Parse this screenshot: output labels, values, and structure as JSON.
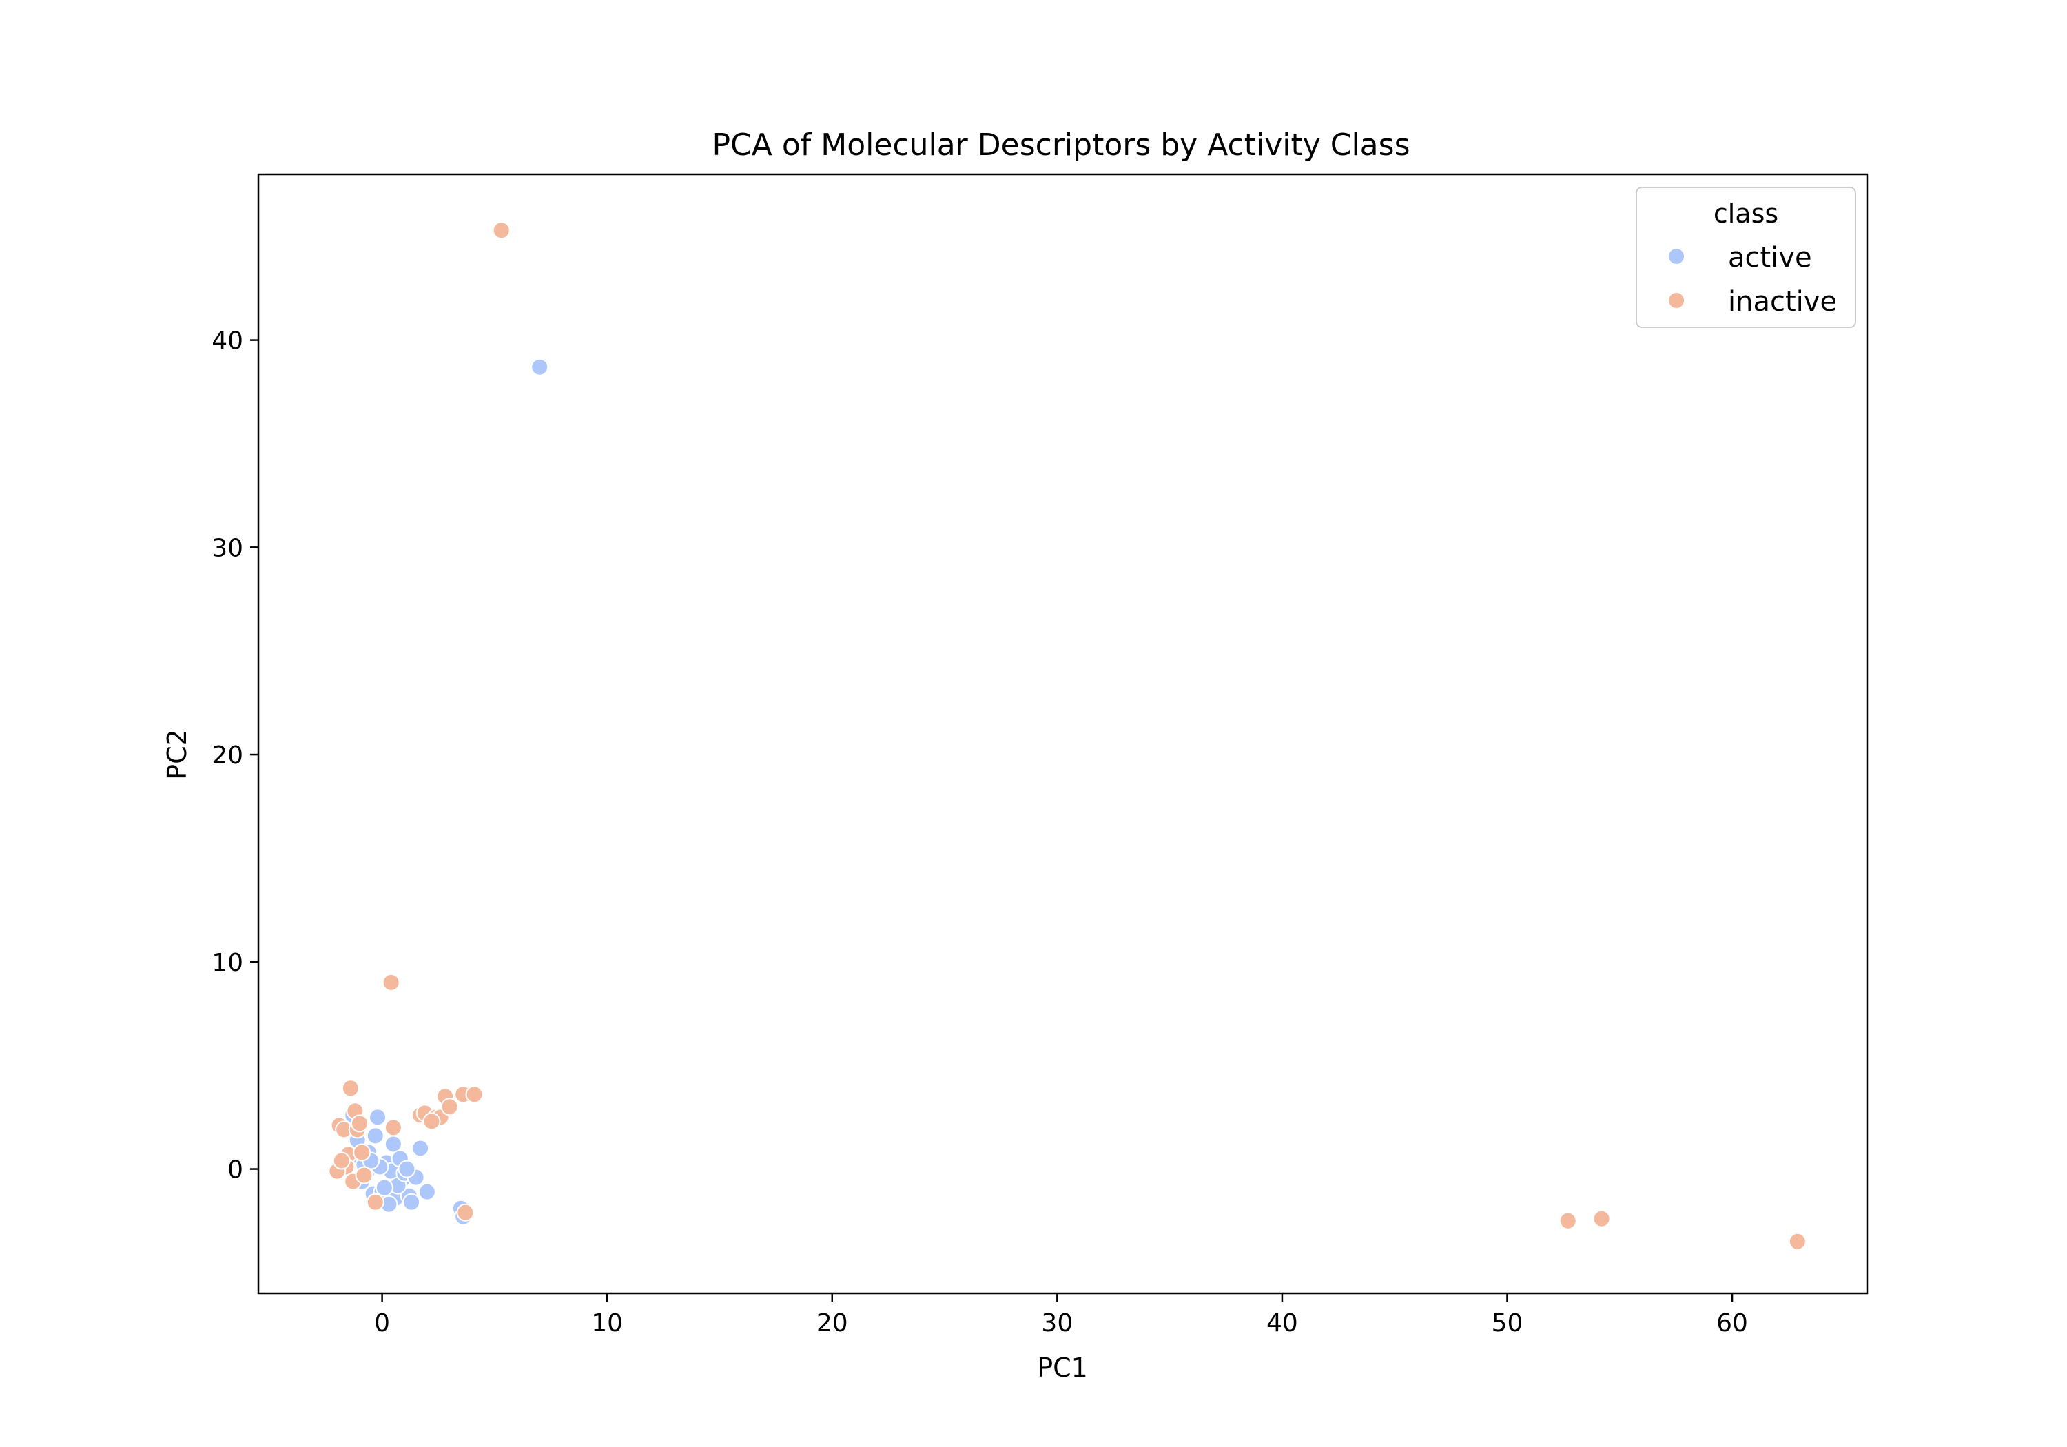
{
  "chart_data": {
    "type": "scatter",
    "title": "PCA of Molecular Descriptors by Activity Class",
    "xlabel": "PC1",
    "ylabel": "PC2",
    "xlim": [
      -5.5,
      66
    ],
    "ylim": [
      -6,
      48
    ],
    "xticks": [
      0,
      10,
      20,
      30,
      40,
      50,
      60
    ],
    "yticks": [
      0,
      10,
      20,
      30,
      40
    ],
    "grid": false,
    "legend": {
      "title": "class",
      "position": "top-right"
    },
    "series": [
      {
        "name": "active",
        "color": "#aec7fa",
        "x": [
          7.0,
          3.5,
          3.6,
          -1.3,
          -0.2,
          -0.3,
          -0.6,
          0.5,
          1.7,
          -1.0,
          -0.7,
          0.2,
          0.9,
          -0.4,
          0.0,
          0.6,
          1.2,
          -0.8,
          2.0,
          1.3,
          0.4,
          -0.1,
          0.7,
          1.0,
          -1.1,
          0.3,
          -0.5,
          0.8,
          1.5,
          -0.9,
          0.1,
          1.1
        ],
        "y": [
          38.7,
          -1.9,
          -2.3,
          2.6,
          2.5,
          1.6,
          0.8,
          1.2,
          1.0,
          0.6,
          -0.2,
          0.3,
          -0.5,
          -1.2,
          -1.1,
          -1.4,
          -1.3,
          0.2,
          -1.1,
          -1.6,
          -0.1,
          0.1,
          -0.8,
          -0.2,
          1.4,
          -1.7,
          0.4,
          0.5,
          -0.4,
          -0.6,
          -0.9,
          0.0
        ]
      },
      {
        "name": "inactive",
        "color": "#f4b89c",
        "x": [
          5.3,
          0.4,
          52.7,
          54.2,
          62.9,
          -1.4,
          -1.2,
          -1.9,
          -1.7,
          -1.1,
          -1.5,
          -0.9,
          -1.6,
          -2.0,
          -1.3,
          0.5,
          1.7,
          1.9,
          2.4,
          2.6,
          2.8,
          3.0,
          3.6,
          4.1,
          3.7,
          -0.3,
          -1.0,
          -0.8,
          2.2,
          -1.8
        ],
        "y": [
          45.3,
          9.0,
          -2.5,
          -2.4,
          -3.5,
          3.9,
          2.8,
          2.1,
          1.9,
          1.9,
          0.7,
          0.8,
          0.1,
          -0.1,
          -0.6,
          2.0,
          2.6,
          2.7,
          2.5,
          2.5,
          3.5,
          3.0,
          3.6,
          3.6,
          -2.1,
          -1.6,
          2.2,
          -0.3,
          2.3,
          0.4
        ]
      }
    ]
  }
}
